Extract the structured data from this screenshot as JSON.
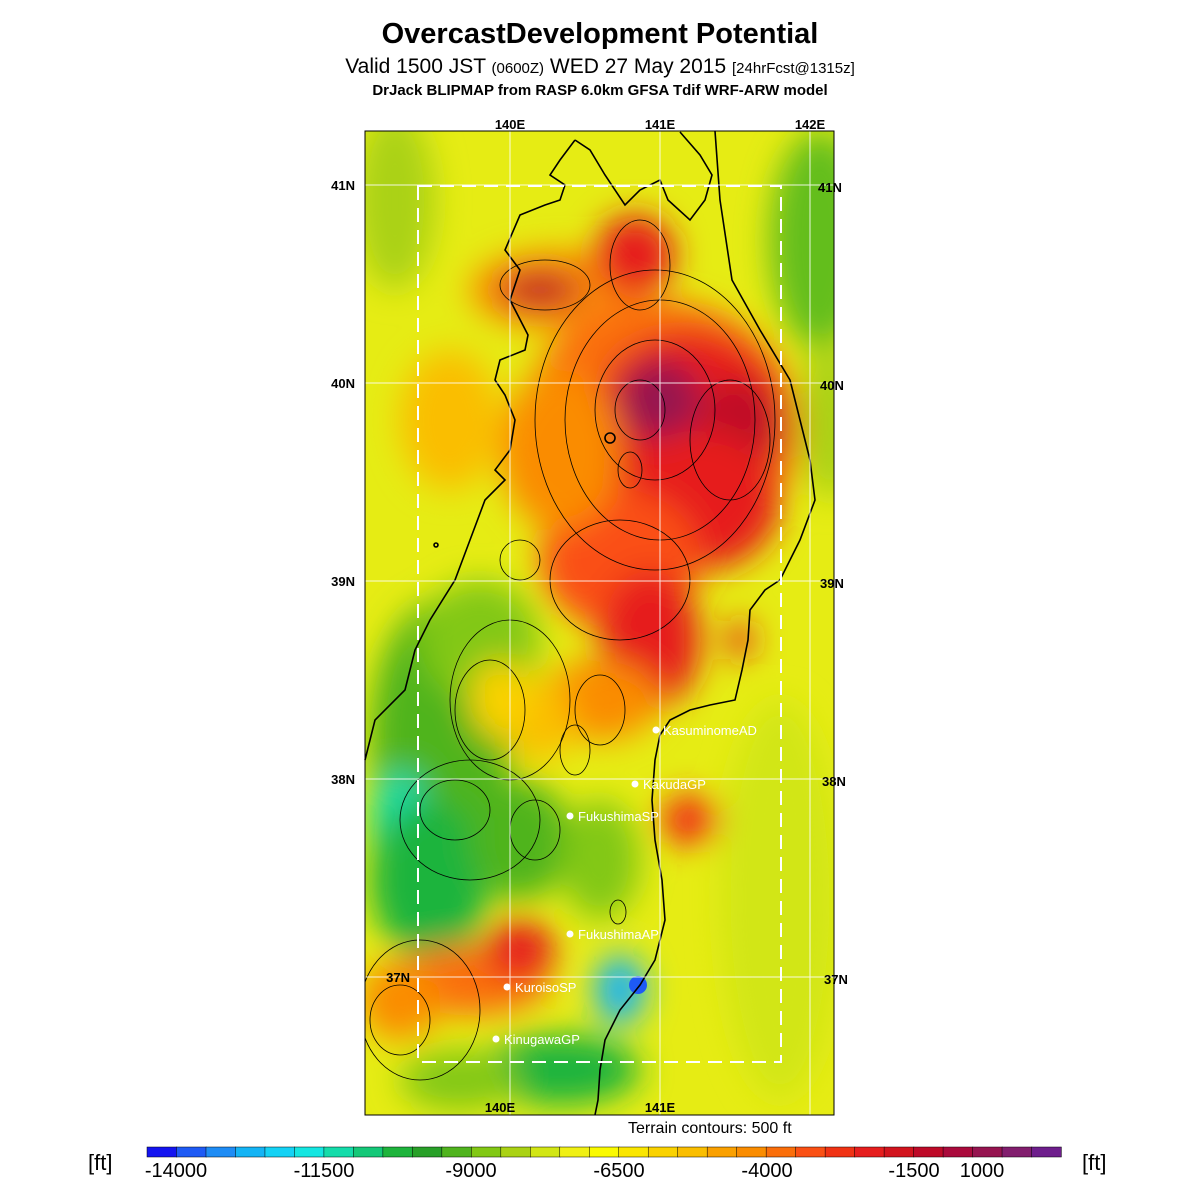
{
  "header": {
    "title": "OvercastDevelopment Potential",
    "subtitle_main": "Valid 1500 JST",
    "subtitle_utc": "(0600Z)",
    "subtitle_date": "WED 27 May 2015",
    "subtitle_fcst": "[24hrFcst@1315z]",
    "model": "DrJack BLIPMAP from RASP 6.0km GFSA Tdif WRF-ARW model"
  },
  "map": {
    "lon_labels_top": [
      "140E",
      "141E",
      "142E"
    ],
    "lon_labels_bottom": [
      "140E",
      "141E"
    ],
    "lat_labels": [
      "41N",
      "40N",
      "39N",
      "38N",
      "37N"
    ],
    "sites": [
      {
        "name": "KasuminomeAD"
      },
      {
        "name": "KakudaGP"
      },
      {
        "name": "FukushimaSP"
      },
      {
        "name": "FukushimaAP"
      },
      {
        "name": "KuroisoSP"
      },
      {
        "name": "KinugawaGP"
      }
    ],
    "terrain_note": "Terrain contours: 500 ft"
  },
  "colorbar": {
    "unit_left": "[ft]",
    "unit_right": "[ft]",
    "labels": [
      "-14000",
      "-11500",
      "-9000",
      "-6500",
      "-4000",
      "-1500",
      "1000"
    ],
    "colors": [
      "#1414f0",
      "#1e5af5",
      "#1e8cf5",
      "#14b4f5",
      "#14d2f5",
      "#14e6e1",
      "#14dcaa",
      "#14c878",
      "#1eb43c",
      "#28a028",
      "#50b41e",
      "#82c814",
      "#aad214",
      "#d2e614",
      "#f0f014",
      "#fafa00",
      "#fae600",
      "#fad200",
      "#fabe00",
      "#faa000",
      "#fa8c00",
      "#fa6e0a",
      "#fa5014",
      "#f03214",
      "#e61e1e",
      "#d2141e",
      "#be0a28",
      "#aa0a3c",
      "#961450",
      "#821e6e",
      "#6e1e8c"
    ]
  }
}
